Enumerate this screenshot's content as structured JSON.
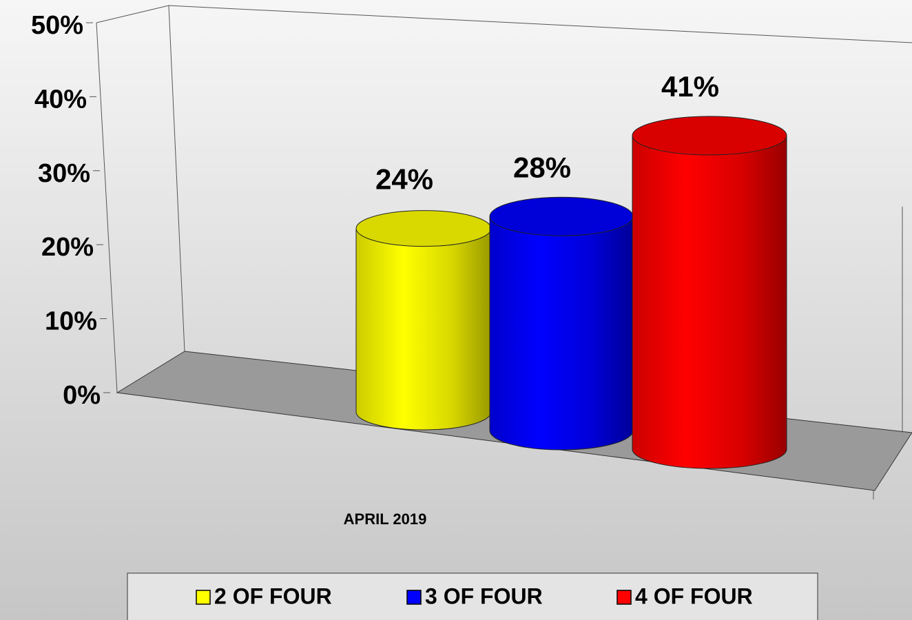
{
  "chart_data": {
    "type": "bar3d",
    "categories": [
      "APRIL 2019"
    ],
    "series": [
      {
        "name": "2 OF FOUR",
        "color": "#ffff00",
        "values": [
          24
        ],
        "value_labels": [
          "24%"
        ]
      },
      {
        "name": "3 OF FOUR",
        "color": "#0000ff",
        "values": [
          28
        ],
        "value_labels": [
          "28%"
        ]
      },
      {
        "name": "4 OF FOUR",
        "color": "#ff0000",
        "values": [
          41
        ],
        "value_labels": [
          "41%"
        ]
      }
    ],
    "ylim": [
      0,
      50
    ],
    "yticks": [
      {
        "value": 0,
        "label": "0%"
      },
      {
        "value": 10,
        "label": "10%"
      },
      {
        "value": 20,
        "label": "20%"
      },
      {
        "value": 30,
        "label": "30%"
      },
      {
        "value": 40,
        "label": "40%"
      },
      {
        "value": 50,
        "label": "50%"
      }
    ],
    "legend": "bottom"
  }
}
